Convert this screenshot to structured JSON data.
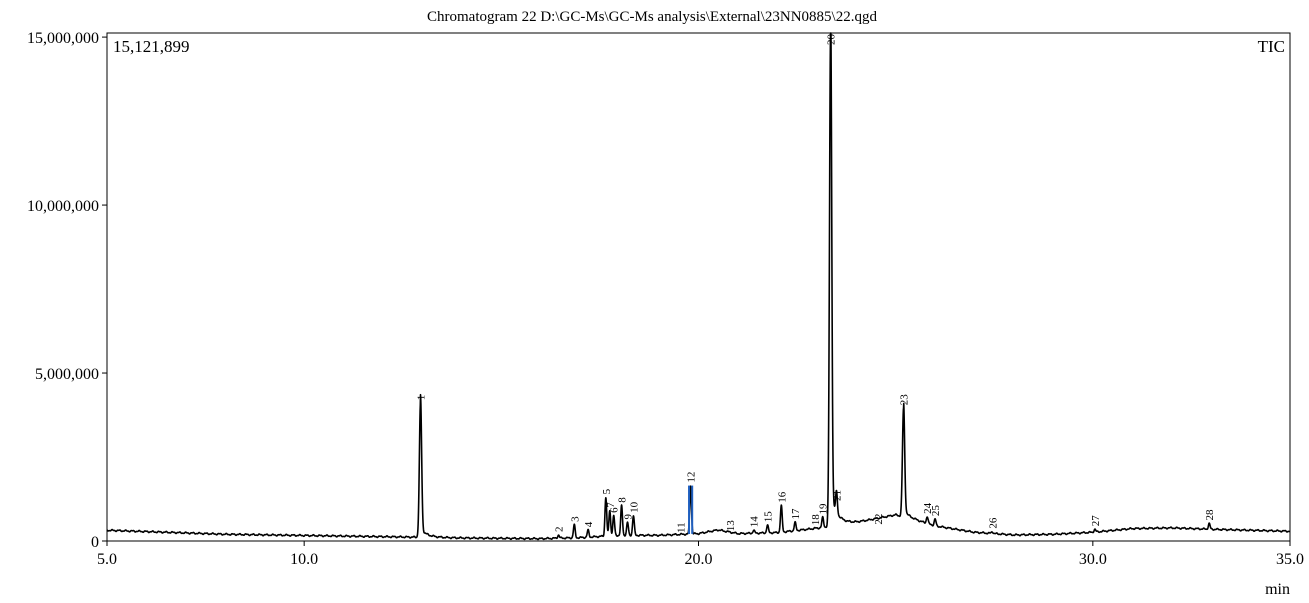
{
  "chart_data": {
    "type": "line",
    "title": "Chromatogram 22 D:\\GC-Ms\\GC-Ms analysis\\External\\23NN0885\\22.qgd",
    "xlabel": "min",
    "ylabel": "",
    "xlim": [
      5.0,
      35.0
    ],
    "ylim": [
      0,
      15121899
    ],
    "x_ticks": [
      5.0,
      10.0,
      20.0,
      30.0,
      35.0
    ],
    "x_tick_labels": [
      "5.0",
      "10.0",
      "20.0",
      "30.0",
      "35.0"
    ],
    "y_ticks": [
      0,
      5000000,
      10000000,
      15000000
    ],
    "y_tick_labels": [
      "0",
      "5,000,000",
      "10,000,000",
      "15,000,000"
    ],
    "max_intensity_label": "15,121,899",
    "trace_label": "TIC",
    "grid": false,
    "line_color": "#000000",
    "marker_color": "#1f5fbf",
    "baseline": [
      [
        5.0,
        320000
      ],
      [
        8.0,
        200000
      ],
      [
        12.5,
        120000
      ],
      [
        14.0,
        90000
      ],
      [
        16.0,
        70000
      ],
      [
        17.0,
        100000
      ],
      [
        18.0,
        170000
      ],
      [
        19.0,
        170000
      ],
      [
        20.0,
        220000
      ],
      [
        20.5,
        330000
      ],
      [
        21.0,
        220000
      ],
      [
        22.0,
        250000
      ],
      [
        23.0,
        380000
      ],
      [
        24.0,
        550000
      ],
      [
        25.0,
        780000
      ],
      [
        26.0,
        450000
      ],
      [
        27.0,
        260000
      ],
      [
        28.0,
        180000
      ],
      [
        29.0,
        200000
      ],
      [
        30.0,
        260000
      ],
      [
        31.0,
        370000
      ],
      [
        32.0,
        390000
      ],
      [
        33.0,
        350000
      ],
      [
        34.0,
        320000
      ],
      [
        35.0,
        290000
      ]
    ],
    "peaks": [
      {
        "label": "1",
        "x": 12.95,
        "y": 4100000
      },
      {
        "label": "2",
        "x": 16.45,
        "y": 180000
      },
      {
        "label": "3",
        "x": 16.85,
        "y": 480000
      },
      {
        "label": "4",
        "x": 17.2,
        "y": 320000
      },
      {
        "label": "5",
        "x": 17.65,
        "y": 1300000
      },
      {
        "label": "6",
        "x": 17.85,
        "y": 750000
      },
      {
        "label": "7",
        "x": 17.75,
        "y": 900000
      },
      {
        "label": "8",
        "x": 18.05,
        "y": 1050000
      },
      {
        "label": "9",
        "x": 18.2,
        "y": 550000
      },
      {
        "label": "10",
        "x": 18.35,
        "y": 750000
      },
      {
        "label": "11",
        "x": 19.55,
        "y": 150000
      },
      {
        "label": "12",
        "x": 19.8,
        "y": 1650000
      },
      {
        "label": "13",
        "x": 20.8,
        "y": 200000
      },
      {
        "label": "14",
        "x": 21.4,
        "y": 320000
      },
      {
        "label": "15",
        "x": 21.75,
        "y": 470000
      },
      {
        "label": "16",
        "x": 22.1,
        "y": 1050000
      },
      {
        "label": "17",
        "x": 22.45,
        "y": 550000
      },
      {
        "label": "18",
        "x": 22.95,
        "y": 380000
      },
      {
        "label": "19",
        "x": 23.15,
        "y": 700000
      },
      {
        "label": "20",
        "x": 23.35,
        "y": 15121899
      },
      {
        "label": "21",
        "x": 23.5,
        "y": 1100000
      },
      {
        "label": "22",
        "x": 24.55,
        "y": 400000
      },
      {
        "label": "23",
        "x": 25.2,
        "y": 3950000
      },
      {
        "label": "24",
        "x": 25.8,
        "y": 720000
      },
      {
        "label": "25",
        "x": 26.0,
        "y": 650000
      },
      {
        "label": "26",
        "x": 27.45,
        "y": 280000
      },
      {
        "label": "27",
        "x": 30.05,
        "y": 350000
      },
      {
        "label": "28",
        "x": 32.95,
        "y": 520000
      }
    ]
  }
}
